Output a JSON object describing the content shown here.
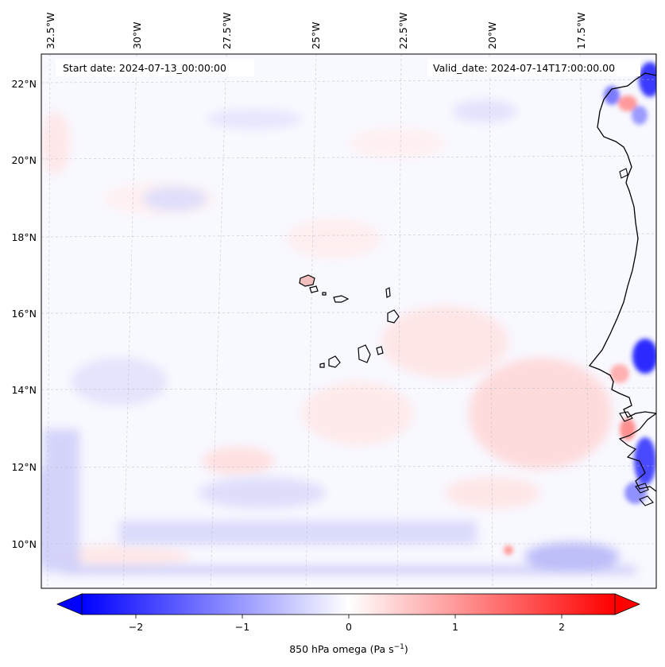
{
  "header": {
    "start_date": "Start date: 2024-07-13_00:00:00",
    "valid_date": "Valid_date: 2024-07-14T17:00:00.00"
  },
  "map": {
    "lon_labels": [
      "32.5°W",
      "30°W",
      "27.5°W",
      "25°W",
      "22.5°W",
      "20°W",
      "17.5°W"
    ],
    "lat_labels": [
      "22°N",
      "20°N",
      "18°N",
      "16°N",
      "14°N",
      "12°N",
      "10°N"
    ],
    "colors": {
      "negative_strong": "#0000ff",
      "negative_mid": "#8080ff",
      "neutral": "#ffffff",
      "positive_mid": "#ff8080",
      "positive_strong": "#ff0000",
      "coastline": "#000000",
      "gridline": "#b0b0b0"
    }
  },
  "colorbar": {
    "ticks": [
      "−2",
      "−1",
      "0",
      "1",
      "2"
    ],
    "label": "850 hPa omega (Pa s",
    "label_sup": "−1",
    "label_end": ")"
  }
}
